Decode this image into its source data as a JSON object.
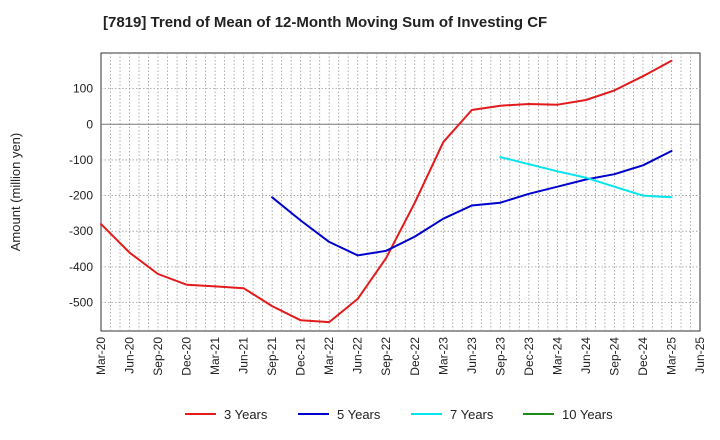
{
  "chart_data": {
    "type": "line",
    "title": "[7819]  Trend of Mean of 12-Month Moving Sum of Investing CF",
    "xlabel": "",
    "ylabel": "Amount (million yen)",
    "ylim": [
      -580,
      200
    ],
    "yticks": [
      100,
      0,
      -100,
      -200,
      -300,
      -400,
      -500
    ],
    "ytick_labels": [
      "100",
      "0",
      "-100",
      "-200",
      "-300",
      "-400",
      "-500"
    ],
    "x_range": [
      "2020-03",
      "2025-06"
    ],
    "xticks": [
      "Mar-20",
      "Jun-20",
      "Sep-20",
      "Dec-20",
      "Mar-21",
      "Jun-21",
      "Sep-21",
      "Dec-21",
      "Mar-22",
      "Jun-22",
      "Sep-22",
      "Dec-22",
      "Mar-23",
      "Jun-23",
      "Sep-23",
      "Dec-23",
      "Mar-24",
      "Jun-24",
      "Sep-24",
      "Dec-24",
      "Mar-25",
      "Jun-25"
    ],
    "grid": true,
    "legend_position": "bottom",
    "series": [
      {
        "name": "3 Years",
        "color": "#e31a1c",
        "points": [
          [
            "2020-03",
            -280
          ],
          [
            "2020-06",
            -360
          ],
          [
            "2020-09",
            -420
          ],
          [
            "2020-12",
            -450
          ],
          [
            "2021-03",
            -455
          ],
          [
            "2021-06",
            -460
          ],
          [
            "2021-09",
            -510
          ],
          [
            "2021-12",
            -550
          ],
          [
            "2022-03",
            -555
          ],
          [
            "2022-06",
            -490
          ],
          [
            "2022-09",
            -375
          ],
          [
            "2022-12",
            -220
          ],
          [
            "2023-03",
            -50
          ],
          [
            "2023-06",
            40
          ],
          [
            "2023-09",
            52
          ],
          [
            "2023-12",
            57
          ],
          [
            "2024-03",
            55
          ],
          [
            "2024-06",
            68
          ],
          [
            "2024-09",
            95
          ],
          [
            "2024-12",
            135
          ],
          [
            "2025-03",
            178
          ]
        ]
      },
      {
        "name": "5 Years",
        "color": "#0000cc",
        "points": [
          [
            "2021-09",
            -205
          ],
          [
            "2021-12",
            -270
          ],
          [
            "2022-03",
            -330
          ],
          [
            "2022-06",
            -368
          ],
          [
            "2022-09",
            -355
          ],
          [
            "2022-12",
            -315
          ],
          [
            "2023-03",
            -265
          ],
          [
            "2023-06",
            -228
          ],
          [
            "2023-09",
            -220
          ],
          [
            "2023-12",
            -195
          ],
          [
            "2024-03",
            -175
          ],
          [
            "2024-06",
            -155
          ],
          [
            "2024-09",
            -140
          ],
          [
            "2024-12",
            -115
          ],
          [
            "2025-03",
            -75
          ]
        ]
      },
      {
        "name": "7 Years",
        "color": "#00e5ee",
        "points": [
          [
            "2023-09",
            -92
          ],
          [
            "2023-12",
            -112
          ],
          [
            "2024-03",
            -132
          ],
          [
            "2024-06",
            -150
          ],
          [
            "2024-09",
            -175
          ],
          [
            "2024-12",
            -200
          ],
          [
            "2025-03",
            -205
          ]
        ]
      },
      {
        "name": "10 Years",
        "color": "#1a8a1a",
        "points": []
      }
    ]
  }
}
